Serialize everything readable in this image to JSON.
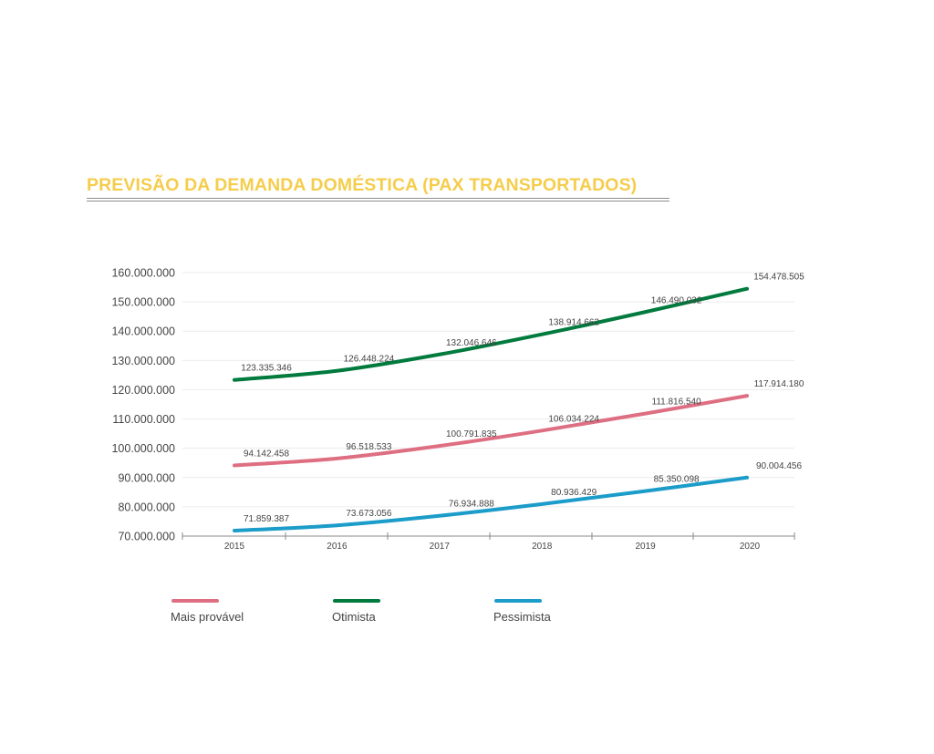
{
  "title": "PREVISÃO DA DEMANDA DOMÉSTICA (PAX TRANSPORTADOS)",
  "colors": {
    "title": "#f5cd4c",
    "mais_provavel": "#de6f82",
    "otimista": "#007a3d",
    "pessimista": "#1b9cc9"
  },
  "chart_data": {
    "type": "line",
    "title": "PREVISÃO DA DEMANDA DOMÉSTICA (PAX TRANSPORTADOS)",
    "xlabel": "",
    "ylabel": "",
    "categories": [
      "2015",
      "2016",
      "2017",
      "2018",
      "2019",
      "2020"
    ],
    "ylim": [
      70000000,
      160000000
    ],
    "yticks": [
      {
        "value": 160000000,
        "label": "160.000.000"
      },
      {
        "value": 150000000,
        "label": "150.000.000"
      },
      {
        "value": 140000000,
        "label": "140.000.000"
      },
      {
        "value": 130000000,
        "label": "130.000.000"
      },
      {
        "value": 120000000,
        "label": "120.000.000"
      },
      {
        "value": 110000000,
        "label": "110.000.000"
      },
      {
        "value": 100000000,
        "label": "100.000.000"
      },
      {
        "value": 90000000,
        "label": "90.000.000"
      },
      {
        "value": 80000000,
        "label": "80.000.000"
      },
      {
        "value": 70000000,
        "label": "70.000.000"
      }
    ],
    "grid": true,
    "legend_position": "bottom-left",
    "series": [
      {
        "name": "Mais provável",
        "color": "#de6f82",
        "values": [
          94142458,
          96518533,
          100791835,
          106034224,
          111816540,
          117914180
        ],
        "labels": [
          "94.142.458",
          "96.518.533",
          "100.791.835",
          "106.034.224",
          "111.816.540",
          "117.914.180"
        ]
      },
      {
        "name": "Otimista",
        "color": "#007a3d",
        "values": [
          123335346,
          126448224,
          132046646,
          138914662,
          146490032,
          154478505
        ],
        "labels": [
          "123.335.346",
          "126.448.224",
          "132.046.646",
          "138.914.662",
          "146.490.032",
          "154.478.505"
        ]
      },
      {
        "name": "Pessimista",
        "color": "#1b9cc9",
        "values": [
          71859387,
          73673056,
          76934888,
          80936429,
          85350098,
          90004456
        ],
        "labels": [
          "71.859.387",
          "73.673.056",
          "76.934.888",
          "80.936.429",
          "85.350.098",
          "90.004.456"
        ]
      }
    ]
  }
}
